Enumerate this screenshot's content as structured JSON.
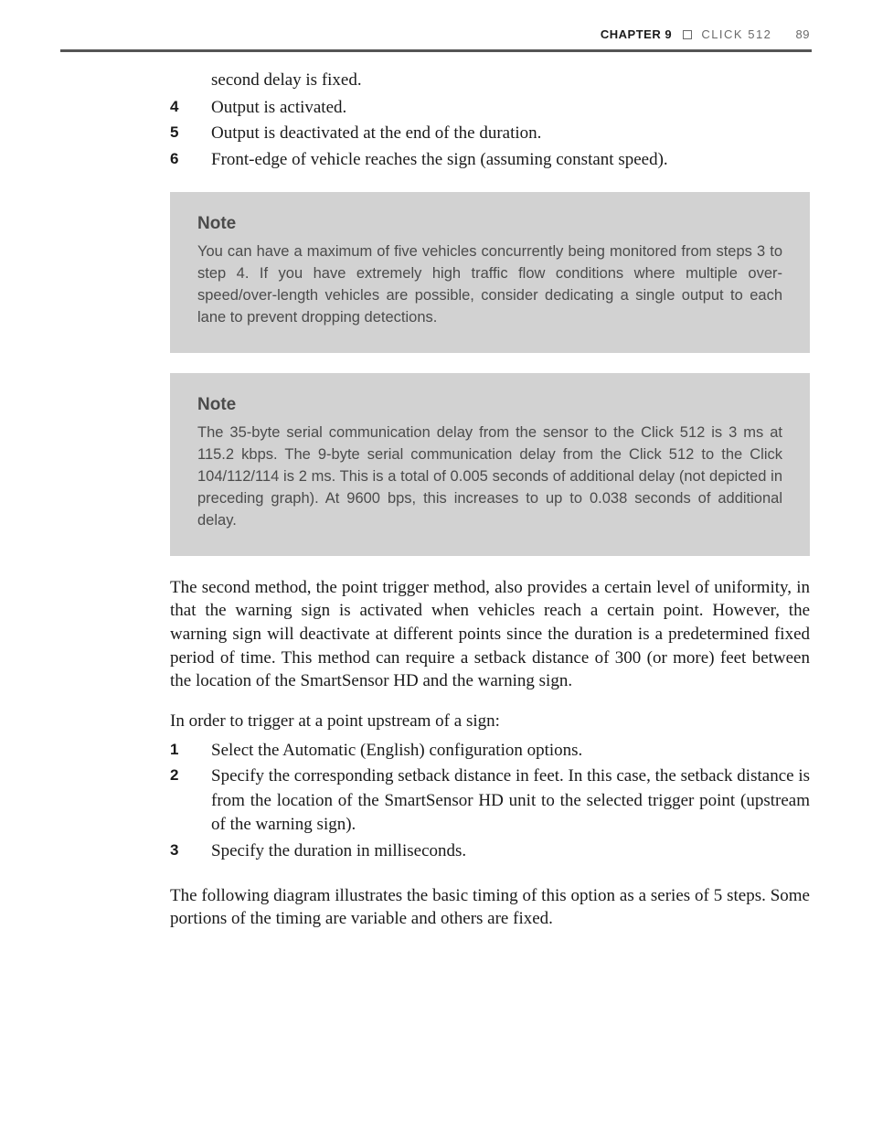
{
  "header": {
    "chapter_label": "CHAPTER 9",
    "section_label": "CLICK 512",
    "page_number": "89"
  },
  "intro_continuation": "second delay is fixed.",
  "steps_a": [
    {
      "n": "4",
      "text": "Output is activated."
    },
    {
      "n": "5",
      "text": "Output is deactivated at the end of the duration."
    },
    {
      "n": "6",
      "text": "Front-edge of vehicle reaches the sign (assuming constant speed)."
    }
  ],
  "note1": {
    "heading": "Note",
    "body": "You can have a maximum of five vehicles concurrently being monitored from steps 3 to step 4. If you have extremely high traffic flow conditions where multiple over-speed/over-length vehicles are possible, consider dedicating a single output to each lane to prevent dropping detections."
  },
  "note2": {
    "heading": "Note",
    "body": "The 35-byte serial communication delay from the sensor to the Click 512 is 3 ms at 115.2 kbps. The 9-byte serial communication delay from the Click 512 to the Click 104/112/114 is 2 ms. This is a total of 0.005 seconds of additional delay (not depicted in preceding graph). At 9600 bps, this increases to up to 0.038 seconds of additional delay."
  },
  "paragraph_method": "The second method, the point trigger method, also provides a certain level of uniformity, in that the warning sign is activated when vehicles reach a certain point. However, the warning sign will deactivate at different points since the duration is a predetermined fixed period of time. This method can require a setback distance of 300 (or more) feet between the location of the SmartSensor HD and the warning sign.",
  "lead_in": "In order to trigger at a point upstream of a sign:",
  "steps_b": [
    {
      "n": "1",
      "text": "Select the Automatic (English) configuration options."
    },
    {
      "n": "2",
      "text": "Specify the corresponding setback distance in feet. In this case, the setback distance is from the location of the SmartSensor HD unit to the selected trigger point (upstream of the warning sign)."
    },
    {
      "n": "3",
      "text": "Specify the duration in milliseconds."
    }
  ],
  "closing": "The following diagram illustrates the basic timing of this option as a series of 5 steps. Some portions of the timing are variable and others are fixed.",
  "colors": {
    "page_bg": "#ffffff",
    "text": "#1a1a1a",
    "header_grey": "#6a6a6a",
    "rule": "#555555",
    "note_bg": "#d2d2d2",
    "note_text": "#4b4b4b"
  }
}
